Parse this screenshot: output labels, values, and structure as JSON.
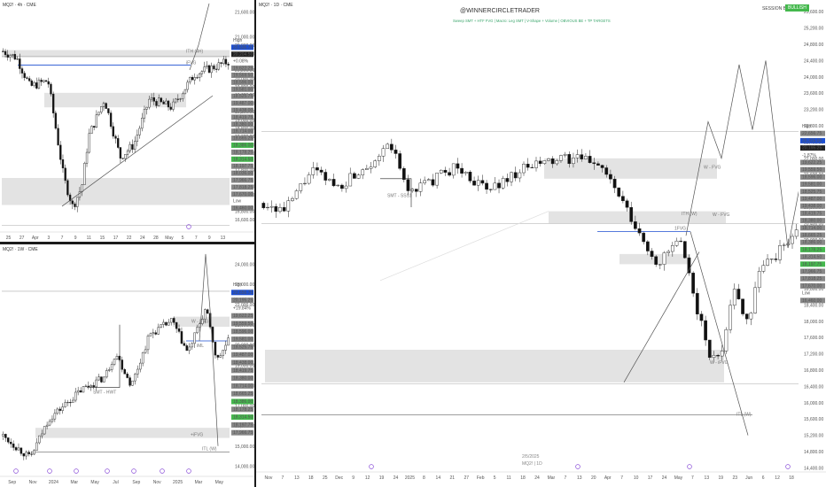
{
  "panes": {
    "tl": {
      "symbol": "MQ2! · 4h · CME"
    },
    "bl": {
      "symbol": "MQ2! · 1W · CME"
    },
    "main": {
      "symbol": "MQ2! · 1D · CME",
      "watermark_title": "@WINNERCIRCLETRADER",
      "watermark_sub": "Sweep SMT + HTF FVG | Macro: Leg SMT | V-Shape + Volume | OBVIOUS BE + TP TARGETS",
      "session_label": "SESSION BIAS",
      "session_value": "BULLISH",
      "bottom_date": "2/5/2025",
      "bottom_symbol": "MQ2! | 1D"
    }
  },
  "colors": {
    "up": "#ffffff",
    "down": "#111111",
    "zone": "#e3e3e3",
    "blue_line": "#1e4fd1",
    "green": "#44b84d"
  },
  "annotations": {
    "tl_ifvg": "ITH (4H)",
    "tl_ifvg2": "iFVG",
    "main_smt": "SMT - SSS1",
    "main_wfvg1": "W - FVG",
    "main_wfvg2": "W - FVG",
    "main_wfvg3": "W - iFVG",
    "main_ith": "ITH (W)",
    "main_itl": "ITL (W)",
    "main_hfvg": "1FVG",
    "bl_smt": "SMT - HWT",
    "bl_wfvg": "W - FVG",
    "bl_ifvg": "+iFVG",
    "bl_itl": "ITL (W)",
    "bl_iml": "iML"
  },
  "chart_data": [
    {
      "type": "candlestick",
      "pane": "tl",
      "x_ticks": [
        "25",
        "27",
        "Apr",
        "3",
        "7",
        "9",
        "11",
        "15",
        "17",
        "22",
        "24",
        "28",
        "May",
        "5",
        "7",
        "9",
        "13"
      ],
      "y_ticks": [
        "21,600.00",
        "21,000.00",
        "20,800.00",
        "20,600.00",
        "20,200.00",
        "20,000.00",
        "19,800.00",
        "19,600.00",
        "19,400.00",
        "19,200.00",
        "19,000.00",
        "18,800.00",
        "18,600.00",
        "18,400.00",
        "18,200.00",
        "17,800.00",
        "17,400.00",
        "17,200.00",
        "16,800.00",
        "16,600.00"
      ],
      "price_labels": [
        "High",
        "20,536.75",
        "20,204.50",
        "+0.08%",
        "19,622.25",
        "19,559.50",
        "18,596.00",
        "19,581.00",
        "18,525.75",
        "19,487.00",
        "19,438.00",
        "18,419.75",
        "18,380.00",
        "18,714.00",
        "18,665.25",
        "18,386.00",
        "18,178.25",
        "18,314.50",
        "18,197.75",
        "18,036.00",
        "17,966.75",
        "17,818.25",
        "17,670.00",
        "Low",
        "16,460.00"
      ],
      "ylim": [
        16300,
        21800
      ]
    },
    {
      "type": "candlestick",
      "pane": "bl",
      "x_ticks": [
        "Sep",
        "Nov",
        "2024",
        "Mar",
        "May",
        "Jul",
        "Sep",
        "Nov",
        "2025",
        "Mar",
        "May"
      ],
      "y_ticks": [
        "24,000.00",
        "23,000.00",
        "22,000.00",
        "21,000.00",
        "20,000.00",
        "19,000.00",
        "18,000.00",
        "17,000.00",
        "16,000.00",
        "15,000.00",
        "14,000.00"
      ],
      "price_labels": [
        "High",
        "22,656.75",
        "20,195.25",
        "+19.84%",
        "19,622.25",
        "19,559.50",
        "18,596.00",
        "19,581.00",
        "18,525.75",
        "19,487.00",
        "18,438.00",
        "18,419.75",
        "18,380.00",
        "18,714.00",
        "18,665.25",
        "18,386.00",
        "18,178.25",
        "18,314.50",
        "18,197.75",
        "17,966.75"
      ],
      "ylim": [
        13500,
        24800
      ]
    },
    {
      "type": "candlestick",
      "pane": "main",
      "x_ticks": [
        "Nov",
        "7",
        "13",
        "18",
        "25",
        "Dec",
        "9",
        "12",
        "19",
        "24",
        "2025",
        "8",
        "14",
        "21",
        "27",
        "Feb",
        "5",
        "11",
        "18",
        "24",
        "Mar",
        "7",
        "13",
        "20",
        "Apr",
        "7",
        "10",
        "17",
        "24",
        "May",
        "7",
        "13",
        "19",
        "23",
        "Jun",
        "6",
        "12",
        "18"
      ],
      "y_ticks": [
        "25,600.00",
        "25,200.00",
        "24,800.00",
        "24,400.00",
        "24,000.00",
        "23,600.00",
        "23,200.00",
        "22,800.00",
        "22,400.00",
        "22,000.00",
        "21,600.00",
        "21,200.00",
        "20,800.00",
        "20,400.00",
        "20,000.00",
        "19,600.00",
        "19,200.00",
        "18,800.00",
        "18,400.00",
        "18,000.00",
        "17,600.00",
        "17,200.00",
        "16,800.00",
        "16,400.00",
        "16,000.00",
        "15,600.00",
        "15,200.00",
        "14,800.00",
        "14,400.00"
      ],
      "price_labels": [
        "High",
        "22,656.75",
        "20,315.00",
        "20,195.25",
        "-1.87%",
        "19,622.25",
        "19,559.50",
        "18,596.00",
        "19,581.00",
        "18,525.75",
        "19,487.00",
        "19,438.00",
        "18,419.75",
        "18,380.00",
        "18,714.00",
        "18,665.25",
        "18,386.00",
        "18,178.25",
        "18,314.50",
        "18,197.75",
        "17,966.75",
        "17,818.25",
        "17,670.00",
        "Low",
        "16,460.00"
      ],
      "ylim": [
        14300,
        25800
      ],
      "key_levels": {
        "high": 22656.75,
        "low": 16460.0,
        "last": 20315.0
      }
    }
  ]
}
